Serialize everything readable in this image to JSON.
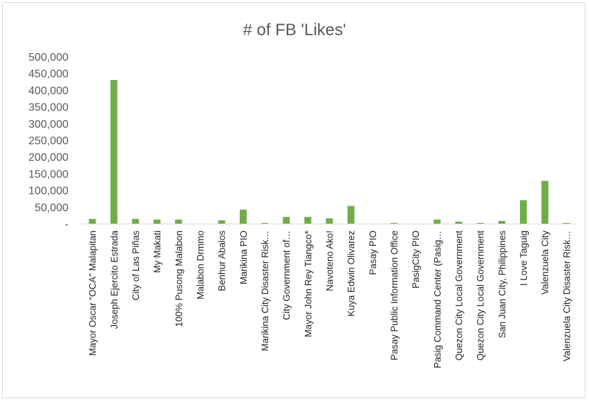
{
  "chart_data": {
    "type": "bar",
    "title": "# of FB 'Likes'",
    "xlabel": "",
    "ylabel": "",
    "ylim": [
      0,
      500000
    ],
    "yticks": [
      0,
      50000,
      100000,
      150000,
      200000,
      250000,
      300000,
      350000,
      400000,
      450000,
      500000
    ],
    "ytick_labels": [
      "-",
      "50,000",
      "100,000",
      "150,000",
      "200,000",
      "250,000",
      "300,000",
      "350,000",
      "400,000",
      "450,000",
      "500,000"
    ],
    "bar_color": "#70ad47",
    "grid": false,
    "legend": "none",
    "categories": [
      "Mayor Oscar “OCA” Malapitan",
      "Joseph Ejercito Estrada",
      "City of Las Piñas",
      "My Makati",
      "100% Pusong Malabon",
      "Malabon Drmmo",
      "Benhur Abalos",
      "Marikina PIO",
      "Marikina City Disaster Risk…",
      "City Government of…",
      "Mayor John Rey Tiangco*",
      "Navoteno Ako!",
      "Kuya Edwin Olivarez",
      "Pasay PIO",
      "Pasay Public Information Office",
      "PasigCity PIO",
      "Pasig Command Center (Pasig…",
      "Quezon City Local Government",
      "Quezon City Local Government",
      "San Juan City, Philippines",
      "I Love Taguig",
      "Valenzuela City",
      "Valenzuela City Disaster Risk…"
    ],
    "values": [
      14000,
      430000,
      14000,
      12000,
      12000,
      0,
      10000,
      42000,
      2000,
      20000,
      20000,
      16000,
      53000,
      0,
      2000,
      0,
      12000,
      6000,
      2000,
      8000,
      70000,
      128000,
      2000
    ]
  }
}
